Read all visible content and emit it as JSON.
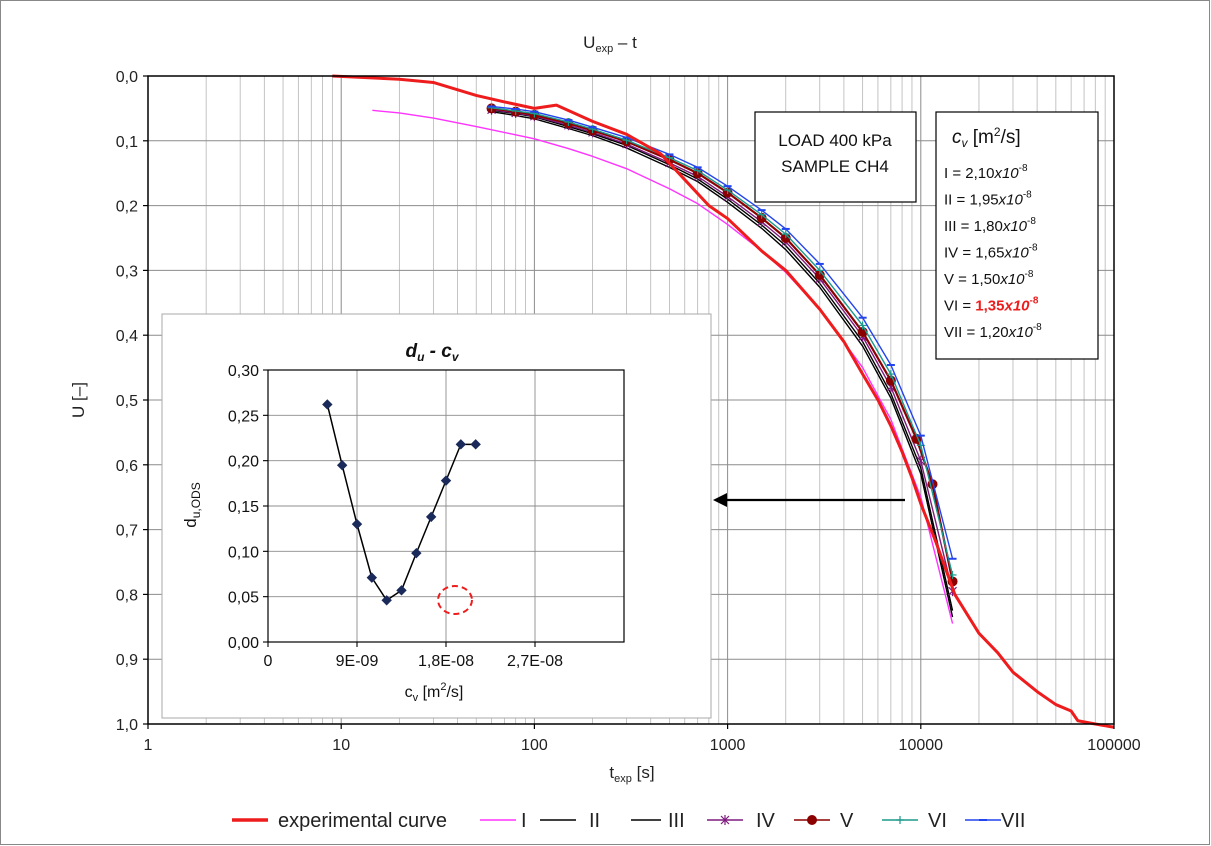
{
  "chart_data": [
    {
      "type": "line",
      "title": "U",
      "title_sub": "exp",
      "title_suffix": " – t",
      "xlabel": "t",
      "xlabel_sub": "exp",
      "xlabel_suffix": " [s]",
      "ylabel": "U [–]",
      "xscale": "log",
      "xlim": [
        1,
        100000
      ],
      "ylim": [
        0.0,
        1.0
      ],
      "y_inverted": true,
      "grid": true,
      "x_ticks": [
        "1",
        "10",
        "100",
        "1000",
        "10000",
        "100000"
      ],
      "y_ticks": [
        "0,0",
        "0,1",
        "0,2",
        "0,3",
        "0,4",
        "0,5",
        "0,6",
        "0,7",
        "0,8",
        "0,9",
        "1,0"
      ],
      "legend_position": "bottom",
      "load_box": [
        "LOAD 400 kPa",
        "SAMPLE CH4"
      ],
      "cv_box": {
        "header": "c",
        "header_sub": "v",
        "header_unit": " [m",
        "header_sup": "2",
        "header_unit_end": "/s]",
        "rows": [
          {
            "label": "I = ",
            "value": "2,10",
            "x10": "x10",
            "exp": "-8",
            "highlight": false
          },
          {
            "label": "II = ",
            "value": "1,95",
            "x10": "x10",
            "exp": "-8",
            "highlight": false
          },
          {
            "label": "III = ",
            "value": "1,80",
            "x10": "x10",
            "exp": "-8",
            "highlight": false
          },
          {
            "label": "IV = ",
            "value": "1,65",
            "x10": "x10",
            "exp": "-8",
            "highlight": false
          },
          {
            "label": "V = ",
            "value": "1,50",
            "x10": "x10",
            "exp": "-8",
            "highlight": false
          },
          {
            "label": "VI = ",
            "value": "1,35",
            "x10": "x10",
            "exp": "-8",
            "highlight": true
          },
          {
            "label": "VII = ",
            "value": "1,20",
            "x10": "x10",
            "exp": "-8",
            "highlight": false
          }
        ]
      },
      "series": [
        {
          "name": "experimental curve",
          "color": "#ee1c1c",
          "marker": "none",
          "x": [
            9,
            20,
            30,
            50,
            70,
            100,
            130,
            200,
            300,
            450,
            600,
            800,
            1000,
            1500,
            2000,
            3000,
            4000,
            5000,
            6000,
            7000,
            8000,
            9000,
            10000,
            12000,
            15000,
            20000,
            25000,
            30000,
            40000,
            50000,
            60000,
            65000,
            80000,
            100000
          ],
          "y": [
            0.0,
            0.005,
            0.01,
            0.03,
            0.04,
            0.05,
            0.045,
            0.07,
            0.09,
            0.12,
            0.16,
            0.2,
            0.22,
            0.27,
            0.3,
            0.36,
            0.41,
            0.46,
            0.5,
            0.54,
            0.58,
            0.62,
            0.66,
            0.72,
            0.8,
            0.86,
            0.89,
            0.92,
            0.95,
            0.97,
            0.98,
            0.995,
            1.0,
            1.005
          ]
        },
        {
          "name": "I",
          "color": "#ff33ff",
          "marker": "none",
          "x": [
            14.5,
            20,
            30,
            50,
            75,
            100,
            150,
            200,
            300,
            500,
            700,
            1000,
            1500,
            2000,
            3000,
            5000,
            7000,
            10000,
            14600
          ],
          "y": [
            0.053,
            0.057,
            0.065,
            0.078,
            0.089,
            0.097,
            0.112,
            0.124,
            0.143,
            0.174,
            0.197,
            0.229,
            0.27,
            0.303,
            0.36,
            0.45,
            0.53,
            0.65,
            0.845
          ]
        },
        {
          "name": "II",
          "color": "#000000",
          "marker": "none",
          "x": [
            60,
            80,
            100,
            150,
            200,
            300,
            500,
            700,
            1000,
            1500,
            2000,
            3000,
            5000,
            7000,
            10000,
            14600
          ],
          "y": [
            0.055,
            0.061,
            0.066,
            0.081,
            0.092,
            0.111,
            0.141,
            0.163,
            0.195,
            0.235,
            0.268,
            0.326,
            0.417,
            0.497,
            0.614,
            0.835
          ]
        },
        {
          "name": "III",
          "color": "#000000",
          "marker": "none",
          "x": [
            60,
            80,
            100,
            150,
            200,
            300,
            500,
            700,
            1000,
            1500,
            2000,
            3000,
            5000,
            7000,
            10000,
            14600
          ],
          "y": [
            0.053,
            0.058,
            0.063,
            0.078,
            0.089,
            0.107,
            0.137,
            0.159,
            0.19,
            0.23,
            0.262,
            0.32,
            0.41,
            0.49,
            0.605,
            0.825
          ]
        },
        {
          "name": "IV",
          "color": "#7f1a7f",
          "marker": "star",
          "x": [
            60,
            80,
            100,
            150,
            200,
            300,
            500,
            700,
            1000,
            1500,
            2000,
            3000,
            5000,
            7000,
            10000,
            14600
          ],
          "y": [
            0.052,
            0.057,
            0.062,
            0.076,
            0.087,
            0.105,
            0.134,
            0.155,
            0.186,
            0.225,
            0.256,
            0.313,
            0.402,
            0.48,
            0.594,
            0.795
          ]
        },
        {
          "name": "V",
          "color": "#8b0000",
          "marker": "circle",
          "x": [
            60,
            80,
            100,
            150,
            200,
            300,
            500,
            700,
            1000,
            1500,
            2000,
            3000,
            5000,
            7000,
            9500,
            11500,
            14600
          ],
          "y": [
            0.05,
            0.055,
            0.06,
            0.073,
            0.084,
            0.101,
            0.129,
            0.15,
            0.18,
            0.219,
            0.25,
            0.307,
            0.395,
            0.47,
            0.56,
            0.63,
            0.78
          ]
        },
        {
          "name": "VI",
          "color": "#1a9a8a",
          "marker": "plus",
          "x": [
            60,
            80,
            100,
            150,
            200,
            300,
            500,
            700,
            1000,
            1500,
            2000,
            3000,
            5000,
            7000,
            10000,
            14600
          ],
          "y": [
            0.049,
            0.054,
            0.058,
            0.071,
            0.082,
            0.099,
            0.126,
            0.146,
            0.176,
            0.214,
            0.244,
            0.3,
            0.385,
            0.46,
            0.57,
            0.77
          ]
        },
        {
          "name": "VII",
          "color": "#2244ee",
          "marker": "dash",
          "x": [
            60,
            80,
            100,
            150,
            200,
            300,
            500,
            700,
            1000,
            1500,
            2000,
            3000,
            5000,
            7000,
            10000,
            14600
          ],
          "y": [
            0.047,
            0.051,
            0.055,
            0.068,
            0.079,
            0.095,
            0.121,
            0.141,
            0.17,
            0.207,
            0.236,
            0.29,
            0.373,
            0.446,
            0.555,
            0.745
          ]
        }
      ]
    },
    {
      "type": "line",
      "title": "d",
      "title_sub": "u",
      "title_mid": " - c",
      "title_sub2": "v",
      "xlabel": "c",
      "xlabel_sub": "v",
      "xlabel_unit": " [m",
      "xlabel_sup": "2",
      "xlabel_end": "/s]",
      "ylabel": "d",
      "ylabel_sub": "u,ODS",
      "xlim": [
        0,
        3.6e-08
      ],
      "ylim": [
        0.0,
        0.3
      ],
      "x_ticks": [
        "0",
        "9E-09",
        "1,8E-08",
        "2,7E-08"
      ],
      "y_ticks": [
        "0,00",
        "0,05",
        "0,10",
        "0,15",
        "0,20",
        "0,25",
        "0,30"
      ],
      "grid": true,
      "minimum_marker": "dashed-circle",
      "series": [
        {
          "name": "d_u",
          "color": "#000000",
          "marker": "diamond",
          "x": [
            6e-09,
            7.5e-09,
            9e-09,
            1.05e-08,
            1.2e-08,
            1.35e-08,
            1.5e-08,
            1.65e-08,
            1.8e-08,
            1.95e-08,
            2.1e-08
          ],
          "y": [
            0.262,
            0.195,
            0.13,
            0.071,
            0.046,
            0.057,
            0.098,
            0.138,
            0.178,
            0.218,
            0.218
          ]
        }
      ]
    }
  ]
}
